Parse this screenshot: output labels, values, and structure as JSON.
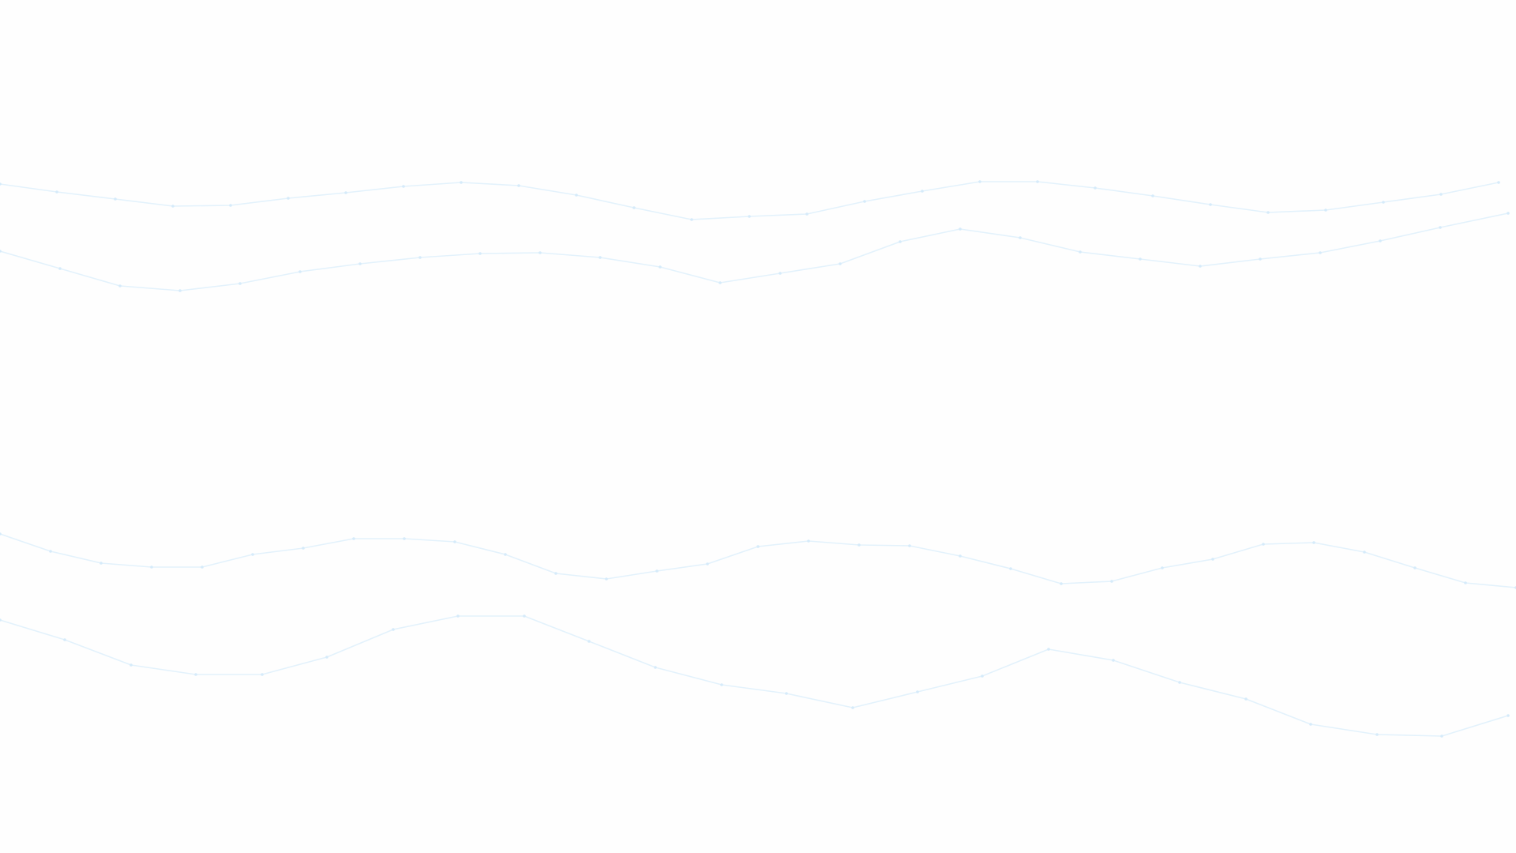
{
  "background": {
    "color": "#fefefe",
    "line_color": "#e3f2fc",
    "node_color": "#d6ebfa",
    "pattern": "wavy-lines-with-nodes",
    "wave_count": 4
  }
}
